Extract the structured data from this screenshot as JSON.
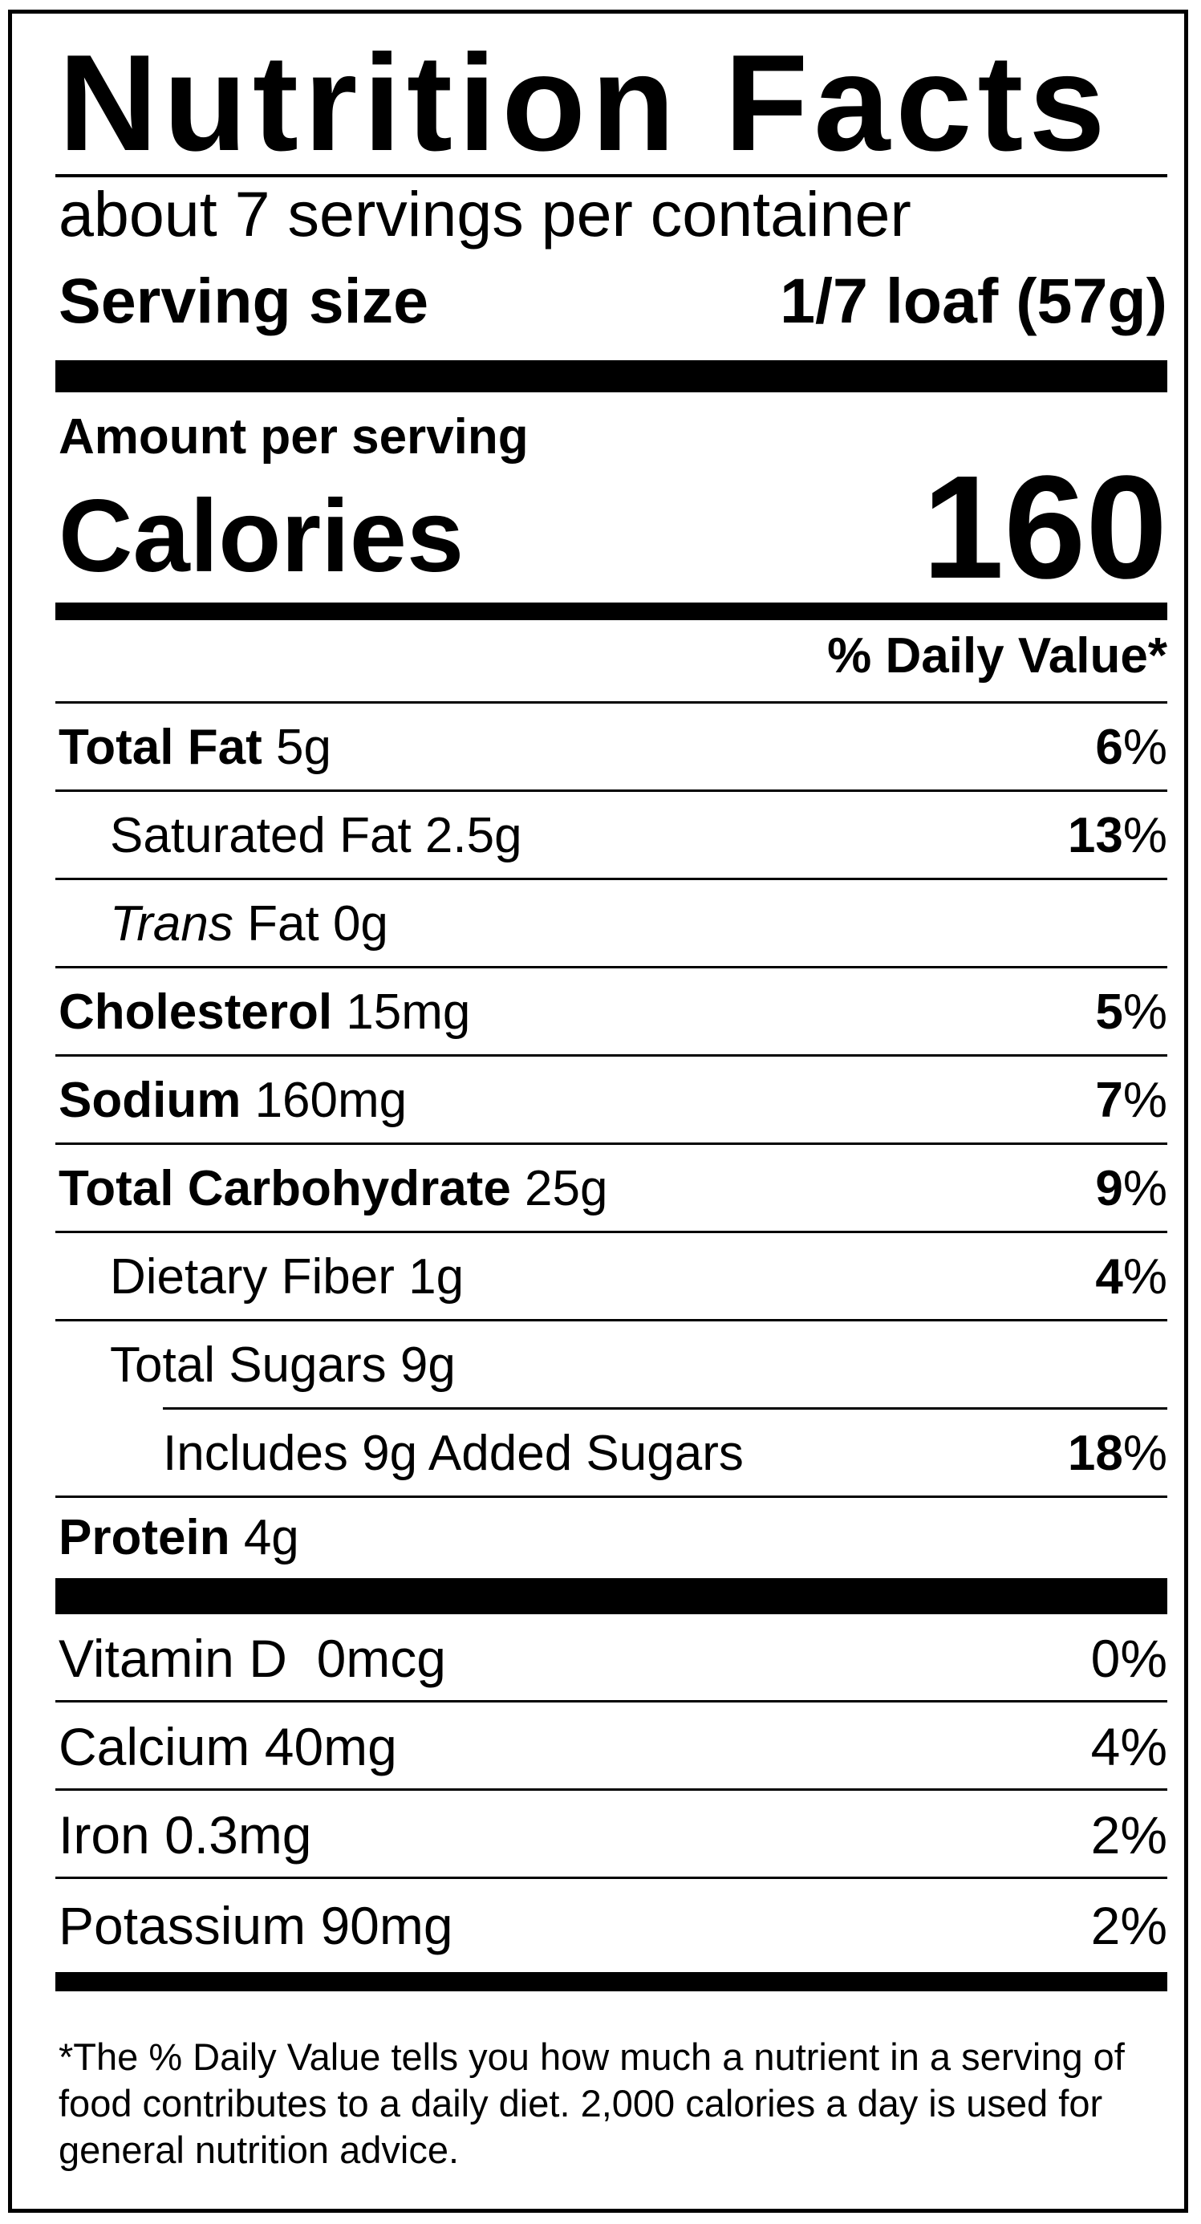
{
  "title": "Nutrition Facts",
  "servings_per_container": "about 7 servings per container",
  "serving_size": {
    "label": "Serving size",
    "value": "1/7 loaf (57g)"
  },
  "amount_per_serving": "Amount per serving",
  "calories": {
    "label": "Calories",
    "value": "160"
  },
  "daily_value_header": "% Daily Value*",
  "nutrients": [
    {
      "name": "Total Fat",
      "amount": "5g",
      "dv_num": "6",
      "dv_sign": "%"
    },
    {
      "name": "Saturated Fat",
      "amount": "2.5g",
      "dv_num": "13",
      "dv_sign": "%"
    },
    {
      "name_italic": "Trans",
      "name_rest": "Fat",
      "amount": "0g"
    },
    {
      "name": "Cholesterol",
      "amount": "15mg",
      "dv_num": "5",
      "dv_sign": "%"
    },
    {
      "name": "Sodium",
      "amount": "160mg",
      "dv_num": "7",
      "dv_sign": "%"
    },
    {
      "name": "Total Carbohydrate",
      "amount": "25g",
      "dv_num": "9",
      "dv_sign": "%"
    },
    {
      "name": "Dietary Fiber",
      "amount": "1g",
      "dv_num": "4",
      "dv_sign": "%"
    },
    {
      "name": "Total Sugars",
      "amount": "9g"
    },
    {
      "name": "Includes 9g Added Sugars",
      "dv_num": "18",
      "dv_sign": "%"
    },
    {
      "name": "Protein",
      "amount": "4g"
    }
  ],
  "vitamins": [
    {
      "name": "Vitamin D",
      "amount": "0mcg",
      "dv": "0%"
    },
    {
      "name": "Calcium",
      "amount": "40mg",
      "dv": "4%"
    },
    {
      "name": "Iron",
      "amount": "0.3mg",
      "dv": "2%"
    },
    {
      "name": "Potassium",
      "amount": "90mg",
      "dv": "2%"
    }
  ],
  "footnote": "*The % Daily Value tells you how much a nutrient in a serving of food contributes to a daily diet. 2,000 calories a day is used for general nutrition advice."
}
